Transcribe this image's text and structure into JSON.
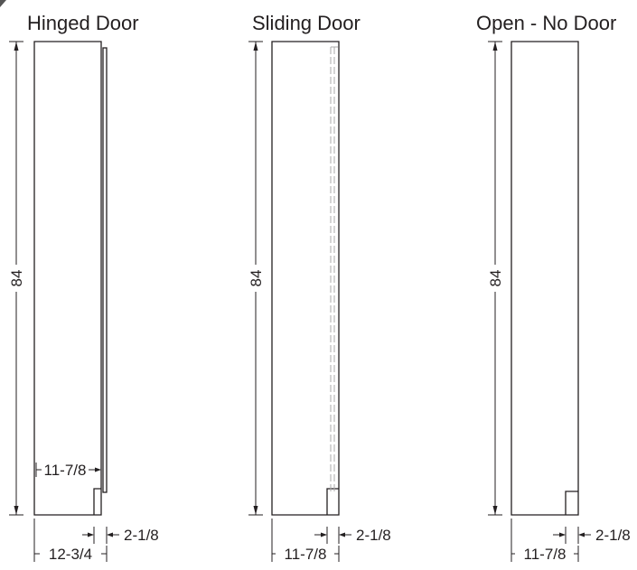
{
  "panels": [
    {
      "title": "Hinged Door",
      "height_label": "84",
      "inner_depth_label": "11-7/8",
      "total_depth_label": "12-3/4",
      "toe_label": "2-1/8"
    },
    {
      "title": "Sliding Door",
      "height_label": "84",
      "depth_label": "11-7/8",
      "toe_label": "2-1/8"
    },
    {
      "title": "Open - No Door",
      "height_label": "84",
      "depth_label": "11-7/8",
      "toe_label": "2-1/8"
    }
  ]
}
